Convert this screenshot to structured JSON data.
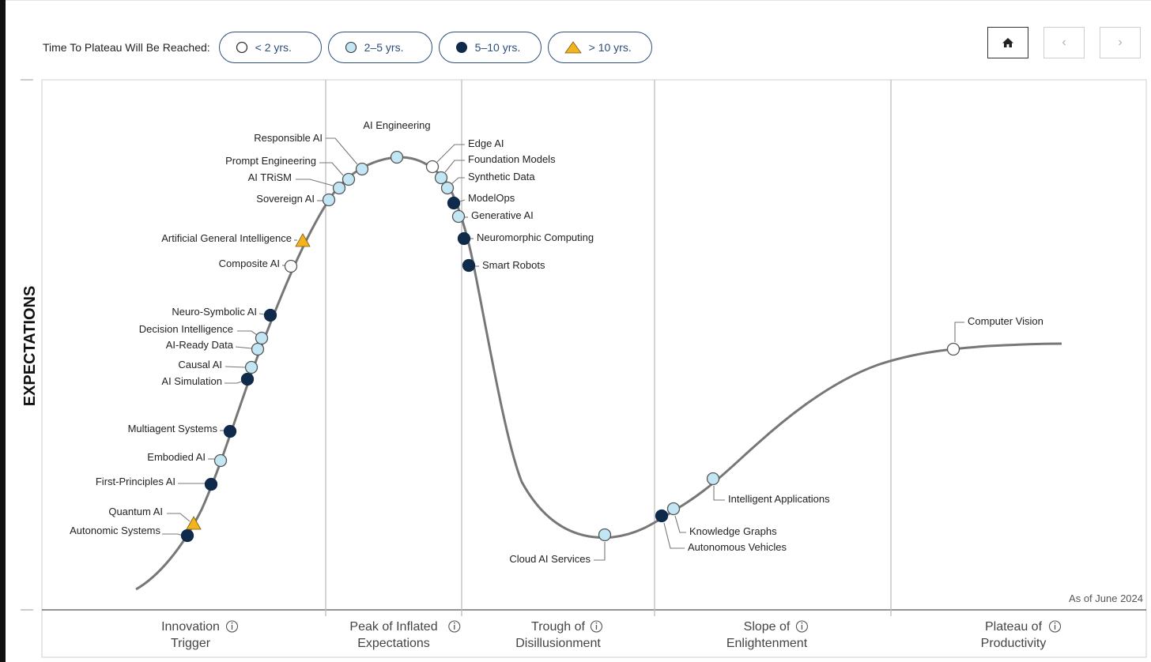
{
  "legend": {
    "title": "Time To Plateau Will Be Reached:",
    "items": [
      {
        "label": "< 2 yrs.",
        "marker": "open-circle"
      },
      {
        "label": "2–5 yrs.",
        "marker": "light-blue-circle"
      },
      {
        "label": "5–10 yrs.",
        "marker": "dark-navy-circle"
      },
      {
        "label": "> 10 yrs.",
        "marker": "gold-triangle"
      }
    ]
  },
  "nav": {
    "home_icon": "home-icon",
    "prev_icon": "chevron-left-icon",
    "next_icon": "chevron-right-icon",
    "prev_glyph": "‹",
    "next_glyph": "›"
  },
  "colors": {
    "curve": "#777777",
    "navy": "#0f2a4a",
    "light_blue": "#c3e6f4",
    "gold": "#f2b31d",
    "border": "#2a4d7a",
    "grid": "#bdbdbd"
  },
  "chart_data": {
    "type": "scatter",
    "ylabel": "EXPECTATIONS",
    "note": "As of June 2024",
    "phases": [
      {
        "line1": "Innovation",
        "line2": "Trigger"
      },
      {
        "line1": "Peak of Inflated",
        "line2": "Expectations"
      },
      {
        "line1": "Trough of",
        "line2": "Disillusionment"
      },
      {
        "line1": "Slope of",
        "line2": "Enlightenment"
      },
      {
        "line1": "Plateau of",
        "line2": "Productivity"
      }
    ],
    "points": [
      {
        "label": "Autonomic Systems",
        "category": "5-10"
      },
      {
        "label": "Quantum AI",
        "category": ">10"
      },
      {
        "label": "First-Principles AI",
        "category": "5-10"
      },
      {
        "label": "Embodied AI",
        "category": "2-5"
      },
      {
        "label": "Multiagent Systems",
        "category": "5-10"
      },
      {
        "label": "AI Simulation",
        "category": "5-10"
      },
      {
        "label": "Causal AI",
        "category": "2-5"
      },
      {
        "label": "AI-Ready Data",
        "category": "2-5"
      },
      {
        "label": "Decision Intelligence",
        "category": "2-5"
      },
      {
        "label": "Neuro-Symbolic AI",
        "category": "5-10"
      },
      {
        "label": "Composite AI",
        "category": "<2"
      },
      {
        "label": "Artificial General Intelligence",
        "category": ">10"
      },
      {
        "label": "Sovereign AI",
        "category": "2-5"
      },
      {
        "label": "AI TRiSM",
        "category": "2-5"
      },
      {
        "label": "Prompt Engineering",
        "category": "2-5"
      },
      {
        "label": "Responsible AI",
        "category": "2-5"
      },
      {
        "label": "AI Engineering",
        "category": "2-5"
      },
      {
        "label": "Edge AI",
        "category": "<2"
      },
      {
        "label": "Foundation Models",
        "category": "2-5"
      },
      {
        "label": "Synthetic Data",
        "category": "2-5"
      },
      {
        "label": "ModelOps",
        "category": "5-10"
      },
      {
        "label": "Generative AI",
        "category": "2-5"
      },
      {
        "label": "Neuromorphic Computing",
        "category": "5-10"
      },
      {
        "label": "Smart Robots",
        "category": "5-10"
      },
      {
        "label": "Cloud AI Services",
        "category": "2-5"
      },
      {
        "label": "Autonomous Vehicles",
        "category": "5-10"
      },
      {
        "label": "Knowledge Graphs",
        "category": "2-5"
      },
      {
        "label": "Intelligent Applications",
        "category": "2-5"
      },
      {
        "label": "Computer Vision",
        "category": "<2"
      }
    ]
  }
}
